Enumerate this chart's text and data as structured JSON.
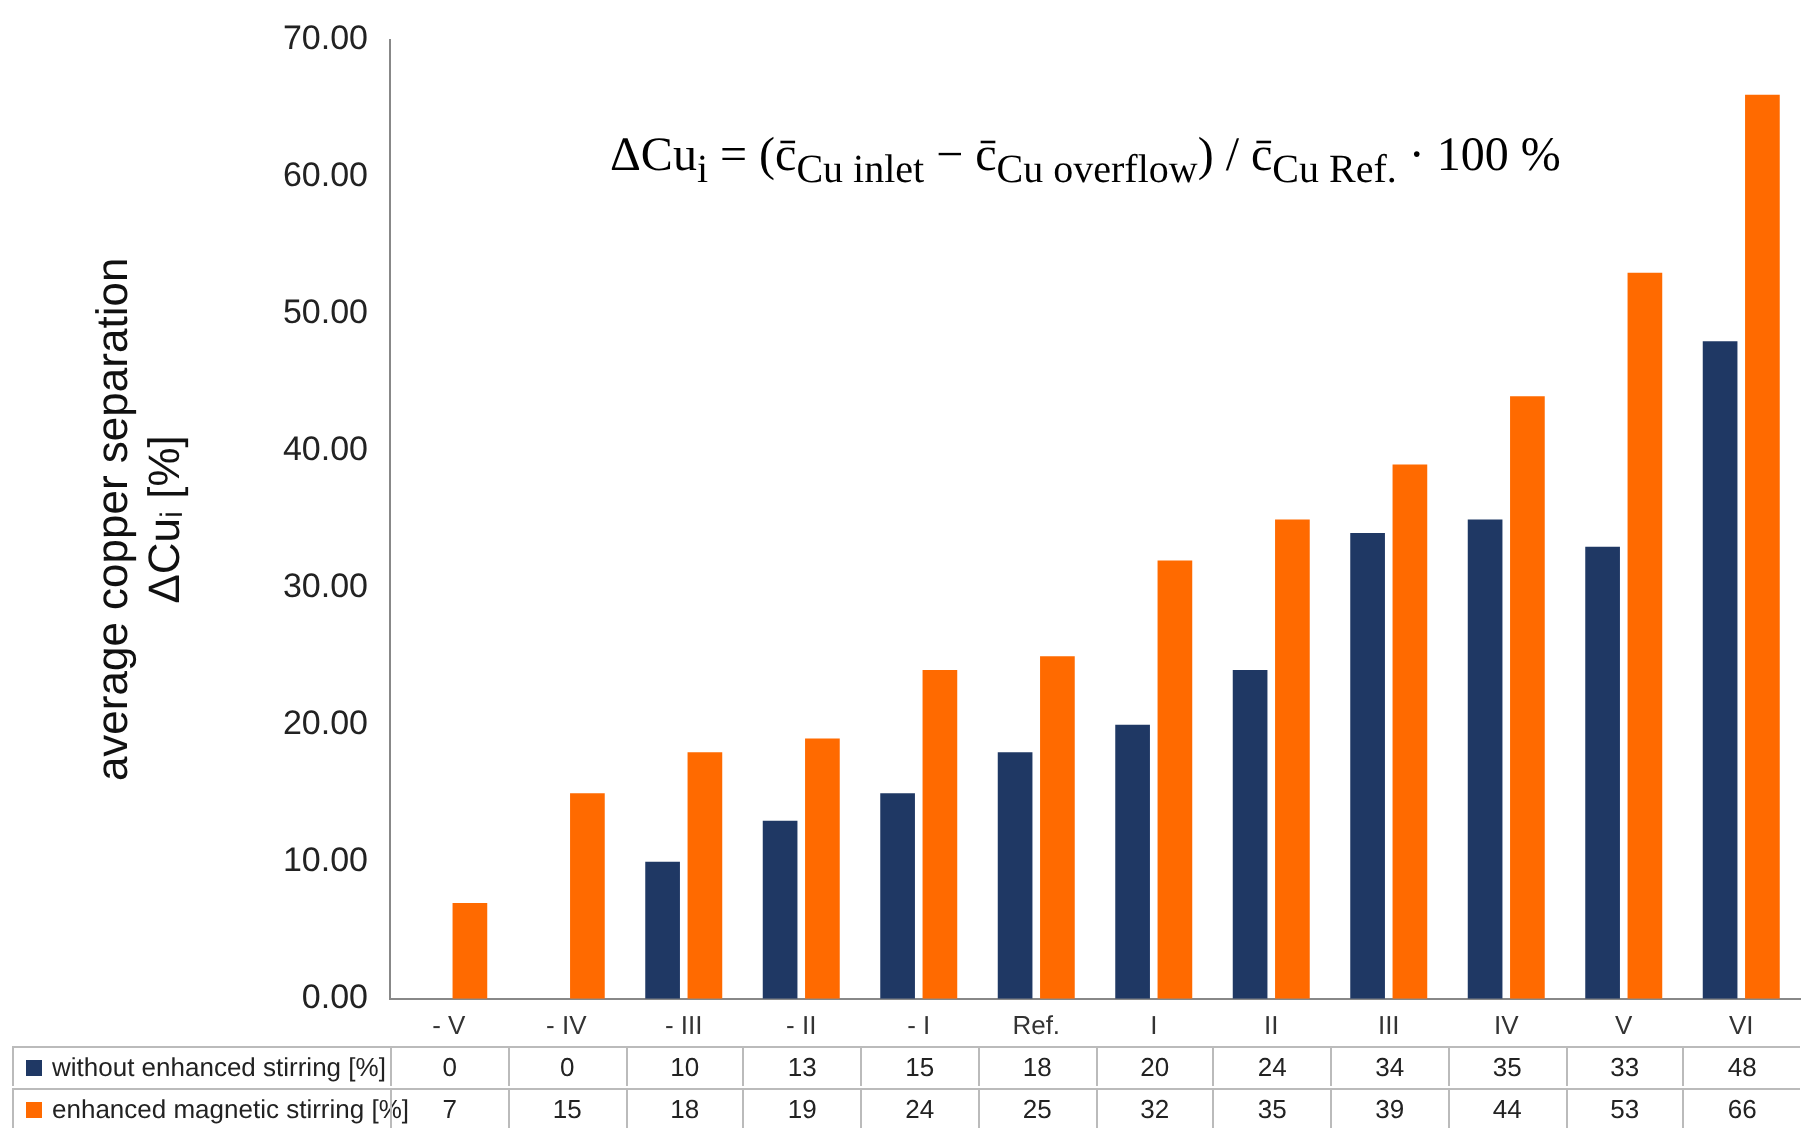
{
  "chart_data": {
    "type": "bar",
    "ylabel": "average copper separation\nΔCuᵢ [%]",
    "categories": [
      "- V",
      "- IV",
      "- III",
      "- II",
      "- I",
      "Ref.",
      "I",
      "II",
      "III",
      "IV",
      "V",
      "VI"
    ],
    "series": [
      {
        "name": "without enhanced stirring [%]",
        "color": "#1f3864",
        "values": [
          0,
          0,
          10,
          13,
          15,
          18,
          20,
          24,
          34,
          35,
          33,
          48
        ]
      },
      {
        "name": "enhanced magnetic stirring  [%]",
        "color": "#ff6a00",
        "values": [
          7,
          15,
          18,
          19,
          24,
          25,
          32,
          35,
          39,
          44,
          53,
          66
        ]
      }
    ],
    "ylim": [
      0,
      70
    ],
    "yticks": [
      {
        "value": 0,
        "label": "0.00"
      },
      {
        "value": 10,
        "label": "10.00"
      },
      {
        "value": 20,
        "label": "20.00"
      },
      {
        "value": 30,
        "label": "30.00"
      },
      {
        "value": 40,
        "label": "40.00"
      },
      {
        "value": 50,
        "label": "50.00"
      },
      {
        "value": 60,
        "label": "60.00"
      },
      {
        "value": 70,
        "label": "70.00"
      }
    ],
    "grid": false,
    "legend": "bottom",
    "data_labels": true,
    "annotations": [
      {
        "text": "ΔCu$_{i}$ = (c̄$_{Cu inlet}$ − c̄$_{Cu overflow}$) / c̄$_{Cu Ref.}$ · 100 %"
      }
    ]
  }
}
